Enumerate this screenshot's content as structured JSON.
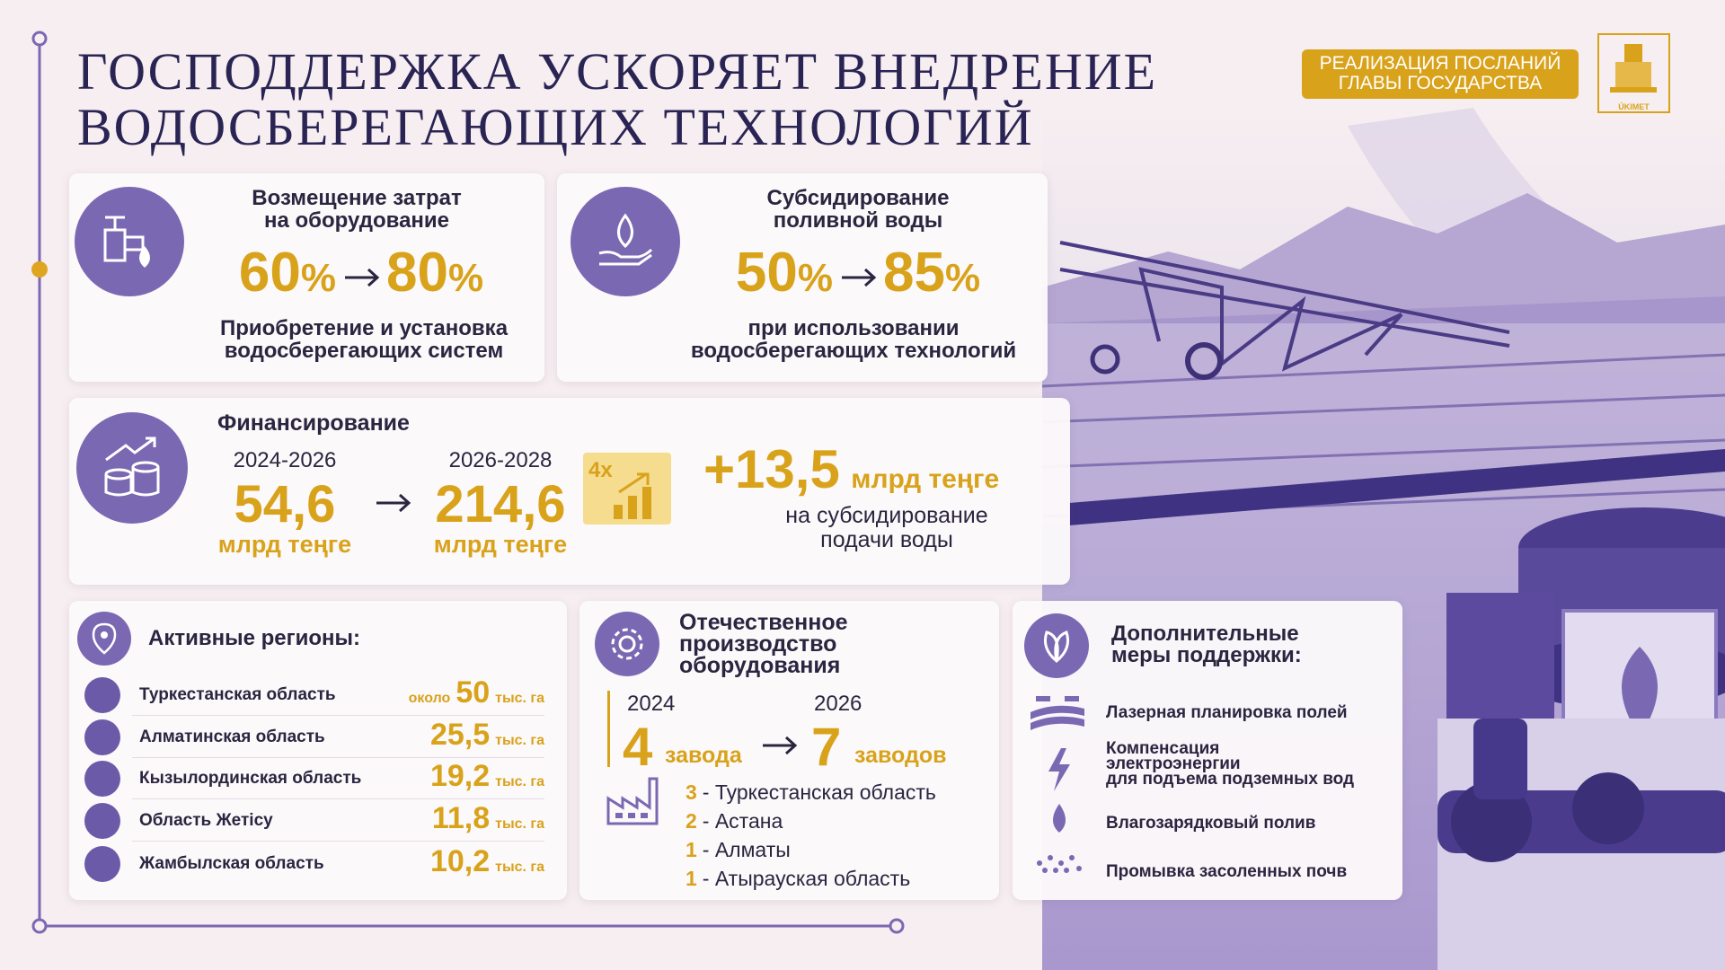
{
  "header": {
    "title_lines": [
      "ГОСПОДДЕРЖКА УСКОРЯЕТ ВНЕДРЕНИЕ",
      "ВОДОСБЕРЕГАЮЩИХ ТЕХНОЛОГИЙ"
    ],
    "badge_lines": [
      "РЕАЛИЗАЦИЯ ПОСЛАНИЙ",
      "ГЛАВЫ ГОСУДАРСТВА"
    ],
    "logo": "ÚKIMET"
  },
  "equipment": {
    "title_lines": [
      "Возмещение затрат",
      "на оборудование"
    ],
    "from": {
      "value": "60",
      "unit": "%"
    },
    "to": {
      "value": "80",
      "unit": "%"
    },
    "caption_lines": [
      "Приобретение и установка",
      "водосберегающих систем"
    ]
  },
  "water": {
    "title_lines": [
      "Субсидирование",
      "поливной воды"
    ],
    "from": {
      "value": "50",
      "unit": "%"
    },
    "to": {
      "value": "85",
      "unit": "%"
    },
    "caption_lines": [
      "при использовании",
      "водосберегающих технологий"
    ]
  },
  "financing": {
    "title": "Финансирование",
    "periods": [
      {
        "years": "2024-2026",
        "amount": "54,6",
        "unit": "млрд теңге"
      },
      {
        "years": "2026-2028",
        "amount": "214,6",
        "unit": "млрд теңге"
      }
    ],
    "multiplier": "4x",
    "extra": {
      "amount": "+13,5",
      "unit": "млрд теңге",
      "caption_lines": [
        "на субсидирование",
        "подачи воды"
      ]
    }
  },
  "regions": {
    "title": "Активные регионы:",
    "rows": [
      {
        "name": "Туркестанская область",
        "prefix": "около",
        "value": "50",
        "unit": "тыс. га"
      },
      {
        "name": "Алматинская область",
        "value": "25,5",
        "unit": "тыс. га"
      },
      {
        "name": "Кызылординская область",
        "value": "19,2",
        "unit": "тыс. га"
      },
      {
        "name": "Область Жетісу",
        "value": "11,8",
        "unit": "тыс. га"
      },
      {
        "name": "Жамбылская область",
        "value": "10,2",
        "unit": "тыс. га"
      }
    ]
  },
  "production": {
    "title_lines": [
      "Отечественное",
      "производство",
      "оборудования"
    ],
    "from": {
      "year": "2024",
      "count": "4",
      "unit": "завода"
    },
    "to": {
      "year": "2026",
      "count": "7",
      "unit": "заводов"
    },
    "plants": [
      {
        "count": "3",
        "place": "- Туркестанская область"
      },
      {
        "count": "2",
        "place": "- Астана"
      },
      {
        "count": "1",
        "place": "- Алматы"
      },
      {
        "count": "1",
        "place": "- Атырауская область"
      }
    ]
  },
  "measures": {
    "title_lines": [
      "Дополнительные",
      "меры поддержки:"
    ],
    "items": [
      {
        "lines": [
          "Лазерная планировка полей"
        ]
      },
      {
        "lines": [
          "Компенсация",
          "электроэнергии",
          "для подъема подземных вод"
        ]
      },
      {
        "lines": [
          "Влагозарядковый полив"
        ]
      },
      {
        "lines": [
          "Промывка засоленных почв"
        ]
      }
    ]
  }
}
